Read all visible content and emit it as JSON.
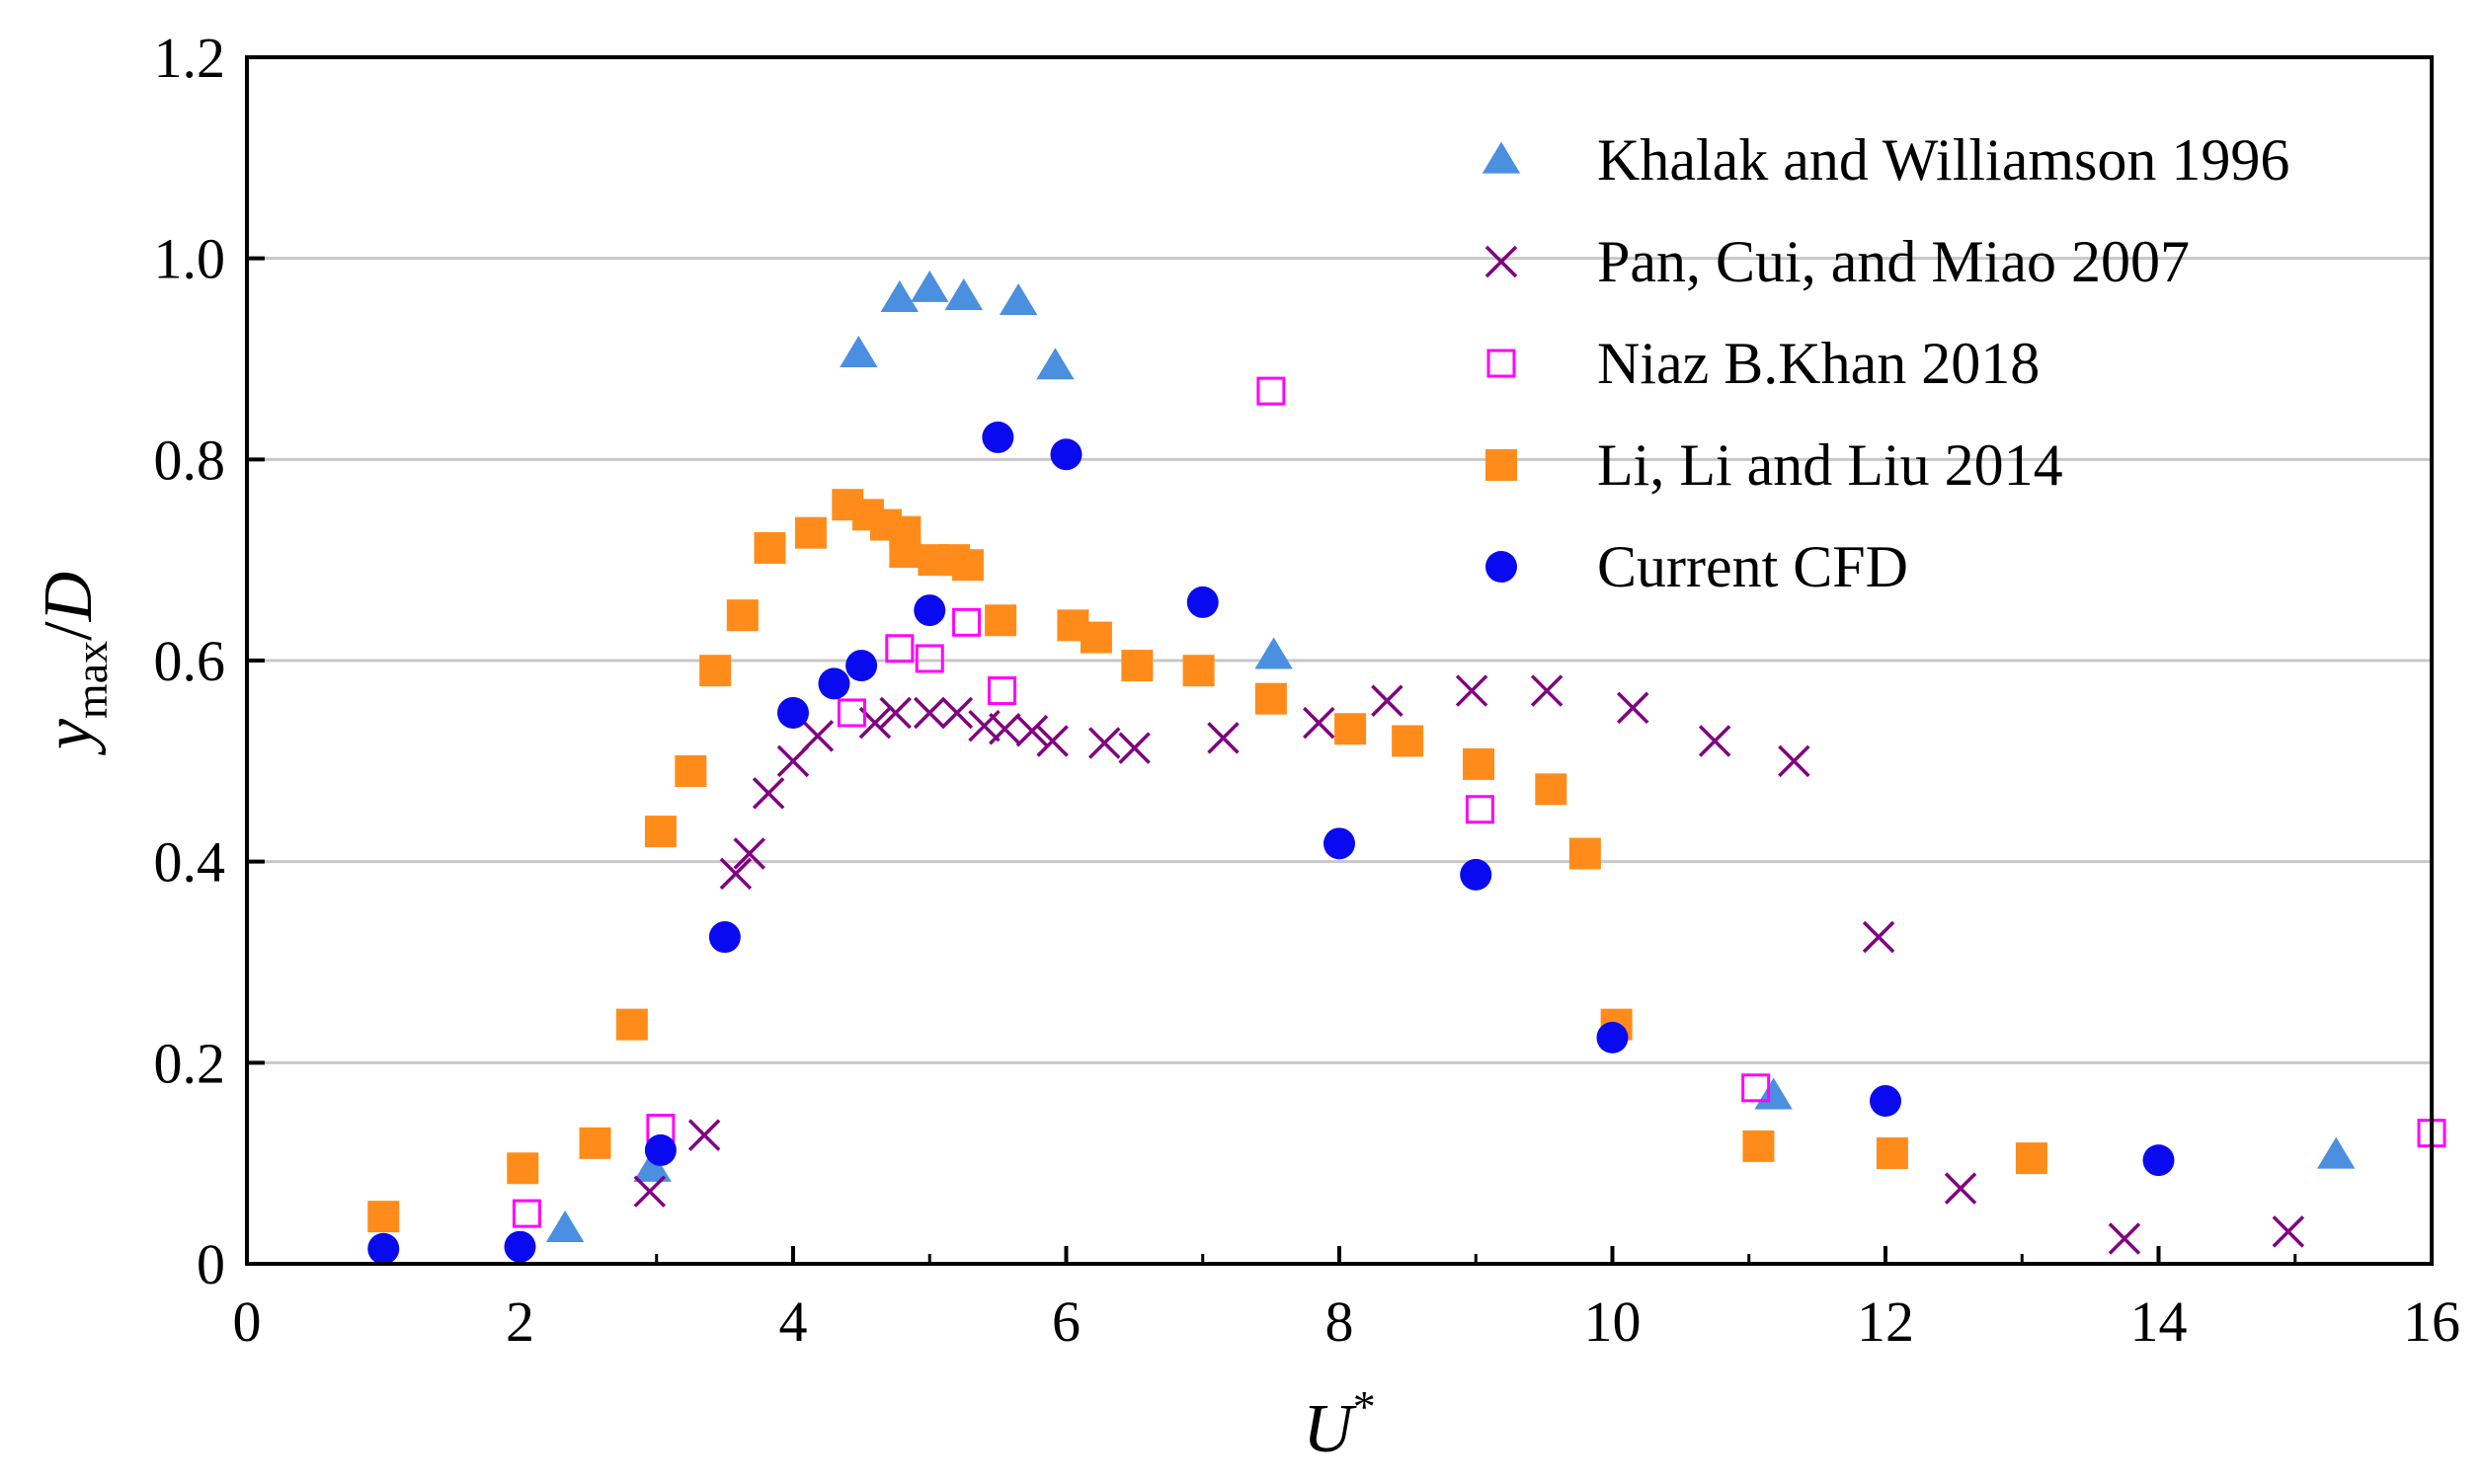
{
  "chart_data": {
    "type": "scatter",
    "xlabel": "U*",
    "ylabel": "y_max/D",
    "xlim": [
      0,
      16
    ],
    "ylim": [
      0,
      1.2
    ],
    "x_ticks": [
      "0",
      "2",
      "4",
      "6",
      "8",
      "10",
      "12",
      "14",
      "16"
    ],
    "y_ticks": [
      "0",
      "0.2",
      "0.4",
      "0.6",
      "0.8",
      "1.0",
      "1.2"
    ],
    "grid": "horizontal",
    "legend_position": "top-right",
    "series": [
      {
        "name": "Khalak and Williamson 1996",
        "marker": "triangle",
        "color": "#4a8fe0",
        "points": [
          [
            2.33,
            0.035
          ],
          [
            2.97,
            0.095
          ],
          [
            4.48,
            0.905
          ],
          [
            4.78,
            0.96
          ],
          [
            5.0,
            0.97
          ],
          [
            5.25,
            0.962
          ],
          [
            5.65,
            0.957
          ],
          [
            5.92,
            0.893
          ],
          [
            7.52,
            0.605
          ],
          [
            11.18,
            0.167
          ],
          [
            15.3,
            0.108
          ]
        ]
      },
      {
        "name": "Pan, Cui, and Miao 2007",
        "marker": "x",
        "color": "#800080",
        "points": [
          [
            2.95,
            0.072
          ],
          [
            3.35,
            0.128
          ],
          [
            3.58,
            0.388
          ],
          [
            3.68,
            0.408
          ],
          [
            3.82,
            0.468
          ],
          [
            4.0,
            0.5
          ],
          [
            4.18,
            0.525
          ],
          [
            4.6,
            0.538
          ],
          [
            4.75,
            0.548
          ],
          [
            5.0,
            0.548
          ],
          [
            5.2,
            0.548
          ],
          [
            5.4,
            0.535
          ],
          [
            5.55,
            0.532
          ],
          [
            5.75,
            0.53
          ],
          [
            5.9,
            0.52
          ],
          [
            6.28,
            0.518
          ],
          [
            6.5,
            0.513
          ],
          [
            7.15,
            0.523
          ],
          [
            7.85,
            0.538
          ],
          [
            8.35,
            0.56
          ],
          [
            8.97,
            0.57
          ],
          [
            9.52,
            0.57
          ],
          [
            10.15,
            0.553
          ],
          [
            10.75,
            0.52
          ],
          [
            11.33,
            0.5
          ],
          [
            11.95,
            0.325
          ],
          [
            12.55,
            0.075
          ],
          [
            13.75,
            0.025
          ],
          [
            14.95,
            0.032
          ]
        ]
      },
      {
        "name": "Niaz B.Khan 2018",
        "marker": "open-square",
        "color": "#ff00ff",
        "points": [
          [
            2.05,
            0.05
          ],
          [
            3.03,
            0.135
          ],
          [
            4.43,
            0.548
          ],
          [
            4.78,
            0.612
          ],
          [
            5.0,
            0.602
          ],
          [
            5.27,
            0.638
          ],
          [
            5.53,
            0.57
          ],
          [
            7.5,
            0.868
          ],
          [
            9.03,
            0.452
          ],
          [
            11.05,
            0.175
          ],
          [
            16.0,
            0.13
          ]
        ]
      },
      {
        "name": "Li, Li and Liu 2014",
        "marker": "filled-square",
        "color": "#ff8c1a",
        "points": [
          [
            1.0,
            0.047
          ],
          [
            2.02,
            0.095
          ],
          [
            2.55,
            0.12
          ],
          [
            2.82,
            0.238
          ],
          [
            3.03,
            0.43
          ],
          [
            3.25,
            0.49
          ],
          [
            3.43,
            0.59
          ],
          [
            3.63,
            0.645
          ],
          [
            3.83,
            0.712
          ],
          [
            4.13,
            0.727
          ],
          [
            4.4,
            0.755
          ],
          [
            4.55,
            0.745
          ],
          [
            4.68,
            0.735
          ],
          [
            4.82,
            0.728
          ],
          [
            4.82,
            0.708
          ],
          [
            5.03,
            0.7
          ],
          [
            5.18,
            0.7
          ],
          [
            5.28,
            0.695
          ],
          [
            5.52,
            0.64
          ],
          [
            6.05,
            0.635
          ],
          [
            6.22,
            0.623
          ],
          [
            6.52,
            0.595
          ],
          [
            6.97,
            0.59
          ],
          [
            7.5,
            0.562
          ],
          [
            8.08,
            0.532
          ],
          [
            8.5,
            0.52
          ],
          [
            9.02,
            0.497
          ],
          [
            9.55,
            0.472
          ],
          [
            9.8,
            0.408
          ],
          [
            10.03,
            0.238
          ],
          [
            11.07,
            0.117
          ],
          [
            12.05,
            0.11
          ],
          [
            13.07,
            0.105
          ]
        ]
      },
      {
        "name": "Current CFD",
        "marker": "circle",
        "color": "#0a0af0",
        "points": [
          [
            1.0,
            0.015
          ],
          [
            2.0,
            0.017
          ],
          [
            3.03,
            0.113
          ],
          [
            3.5,
            0.325
          ],
          [
            4.0,
            0.548
          ],
          [
            4.3,
            0.577
          ],
          [
            4.5,
            0.595
          ],
          [
            5.0,
            0.65
          ],
          [
            5.5,
            0.822
          ],
          [
            6.0,
            0.805
          ],
          [
            7.0,
            0.658
          ],
          [
            8.0,
            0.418
          ],
          [
            9.0,
            0.387
          ],
          [
            10.0,
            0.225
          ],
          [
            12.0,
            0.162
          ],
          [
            14.0,
            0.103
          ]
        ]
      }
    ]
  }
}
